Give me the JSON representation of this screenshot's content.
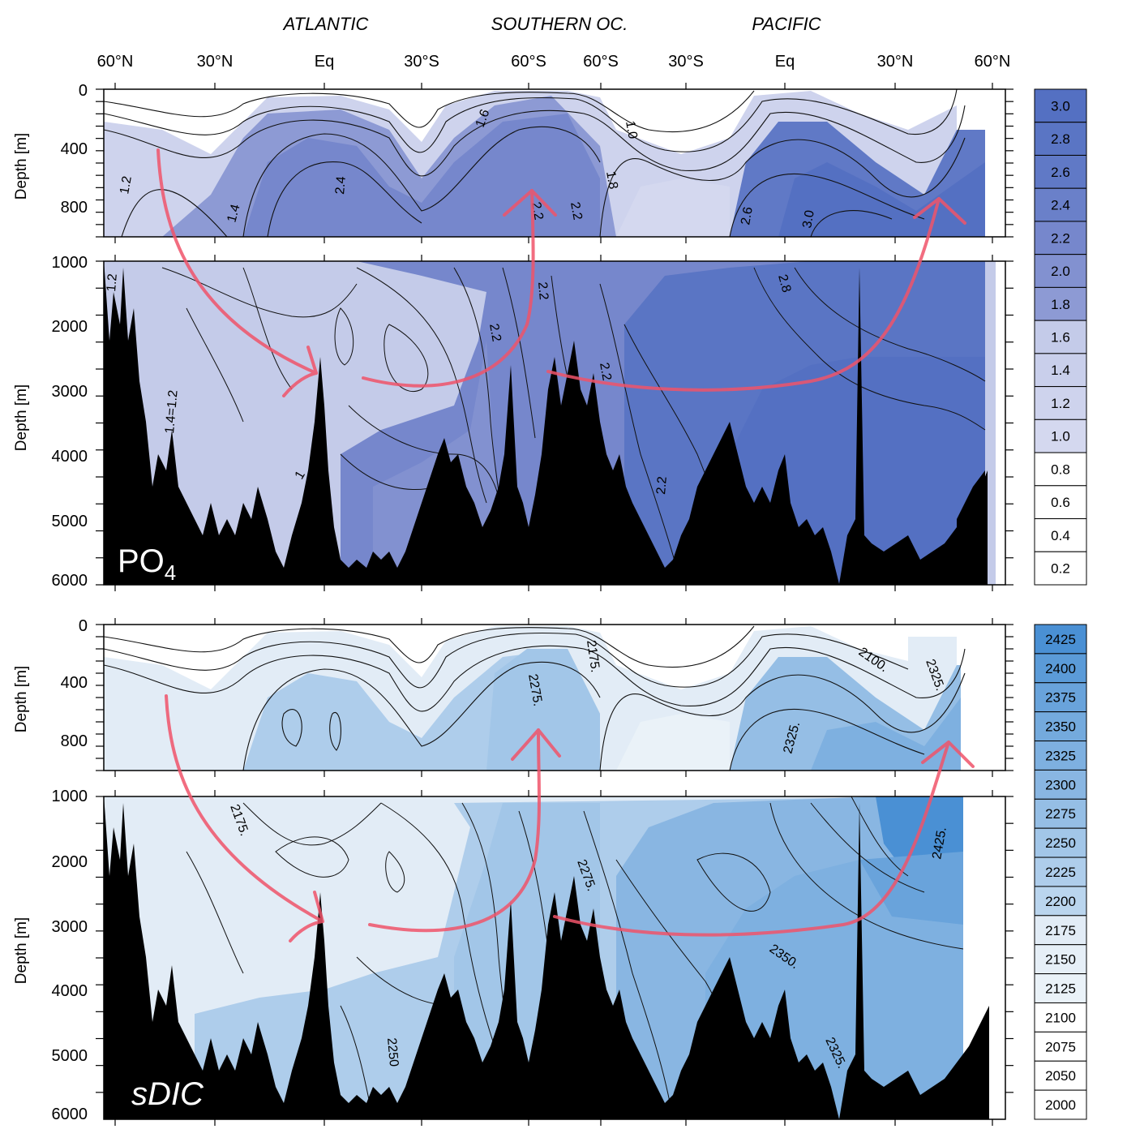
{
  "chart_data": [
    {
      "type": "heatmap",
      "variable_label": "PO",
      "variable_subscript": "4",
      "ocean_titles": [
        "ATLANTIC",
        "SOUTHERN OC.",
        "PACIFIC"
      ],
      "lat_ticks": [
        "60°N",
        "30°N",
        "Eq",
        "30°S",
        "60°S",
        "60°S",
        "30°S",
        "Eq",
        "30°N",
        "60°N"
      ],
      "ylabel": "Depth [m]",
      "upper_ticks": [
        "0",
        "400",
        "800"
      ],
      "lower_ticks": [
        "1000",
        "2000",
        "3000",
        "4000",
        "5000",
        "6000"
      ],
      "upper_ylim": [
        0,
        1000
      ],
      "lower_ylim": [
        1000,
        6000
      ],
      "contour_labels": [
        "1.2",
        "1.4",
        "2.4",
        "1.6",
        "1.0",
        "1.8",
        "2.2",
        "2.2",
        "2.6",
        "3.0",
        "1.2",
        "1.4=1.2",
        "2.2",
        "2.2",
        "2.8",
        "2.2",
        "2.8",
        "2.2",
        "1"
      ],
      "colorbar": {
        "levels": [
          "3.0",
          "2.8",
          "2.6",
          "2.4",
          "2.2",
          "2.0",
          "1.8",
          "1.6",
          "1.4",
          "1.2",
          "1.0",
          "0.8",
          "0.6",
          "0.4",
          "0.2"
        ],
        "colors": [
          "#5470c2",
          "#5a75c4",
          "#6079c6",
          "#6a80c9",
          "#7687cc",
          "#8291d0",
          "#8d9ad4",
          "#c4cbe9",
          "#c9cfeb",
          "#ced3ed",
          "#d4d8ef",
          "#ffffff",
          "#ffffff",
          "#ffffff",
          "#ffffff"
        ]
      }
    },
    {
      "type": "heatmap",
      "variable_label": "sDIC",
      "ocean_titles": [],
      "ylabel": "Depth [m]",
      "upper_ticks": [
        "0",
        "400",
        "800"
      ],
      "lower_ticks": [
        "1000",
        "2000",
        "3000",
        "4000",
        "5000",
        "6000"
      ],
      "upper_ylim": [
        0,
        1000
      ],
      "lower_ylim": [
        1000,
        6000
      ],
      "contour_labels": [
        "2275.",
        "2175.",
        "2100.",
        "2325.",
        "2325.",
        "2175.",
        "2275.",
        "2425.",
        "2350.",
        "2250",
        "2325."
      ],
      "colorbar": {
        "levels": [
          "2425",
          "2400",
          "2375",
          "2350",
          "2325",
          "2300",
          "2275",
          "2250",
          "2225",
          "2200",
          "2175",
          "2150",
          "2125",
          "2100",
          "2075",
          "2050",
          "2000"
        ],
        "colors": [
          "#4a90d4",
          "#5b9bd8",
          "#69a3db",
          "#74aadd",
          "#7eb0e0",
          "#89b6e2",
          "#95bee5",
          "#a2c6e8",
          "#aecdeb",
          "#bad5ee",
          "#e2ecf6",
          "#e6eff7",
          "#eaf2f8",
          "#ffffff",
          "#ffffff",
          "#ffffff",
          "#ffffff"
        ]
      }
    }
  ]
}
